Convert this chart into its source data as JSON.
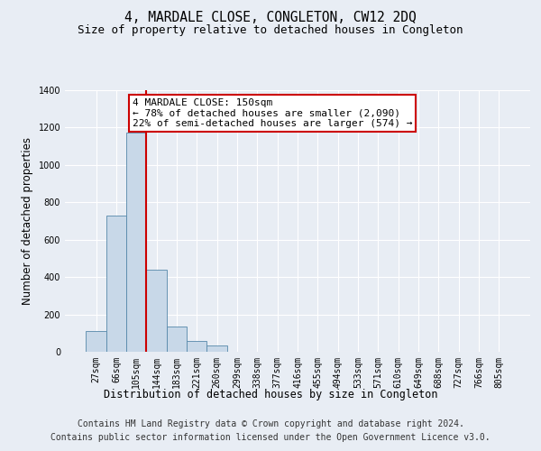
{
  "title": "4, MARDALE CLOSE, CONGLETON, CW12 2DQ",
  "subtitle": "Size of property relative to detached houses in Congleton",
  "xlabel": "Distribution of detached houses by size in Congleton",
  "ylabel": "Number of detached properties",
  "bin_labels": [
    "27sqm",
    "66sqm",
    "105sqm",
    "144sqm",
    "183sqm",
    "221sqm",
    "260sqm",
    "299sqm",
    "338sqm",
    "377sqm",
    "416sqm",
    "455sqm",
    "494sqm",
    "533sqm",
    "571sqm",
    "610sqm",
    "649sqm",
    "688sqm",
    "727sqm",
    "766sqm",
    "805sqm"
  ],
  "bar_values": [
    110,
    730,
    1175,
    440,
    135,
    58,
    32,
    0,
    0,
    0,
    0,
    0,
    0,
    0,
    0,
    0,
    0,
    0,
    0,
    0,
    0
  ],
  "bar_color": "#c8d8e8",
  "bar_edge_color": "#5588aa",
  "vline_color": "#cc0000",
  "annotation_line1": "4 MARDALE CLOSE: 150sqm",
  "annotation_line2": "← 78% of detached houses are smaller (2,090)",
  "annotation_line3": "22% of semi-detached houses are larger (574) →",
  "annotation_box_color": "#cc0000",
  "ylim": [
    0,
    1400
  ],
  "yticks": [
    0,
    200,
    400,
    600,
    800,
    1000,
    1200,
    1400
  ],
  "footer_line1": "Contains HM Land Registry data © Crown copyright and database right 2024.",
  "footer_line2": "Contains public sector information licensed under the Open Government Licence v3.0.",
  "background_color": "#e8edf4",
  "plot_bg_color": "#e8edf4",
  "title_fontsize": 10.5,
  "subtitle_fontsize": 9,
  "axis_label_fontsize": 8.5,
  "tick_fontsize": 7,
  "footer_fontsize": 7,
  "annotation_fontsize": 8
}
